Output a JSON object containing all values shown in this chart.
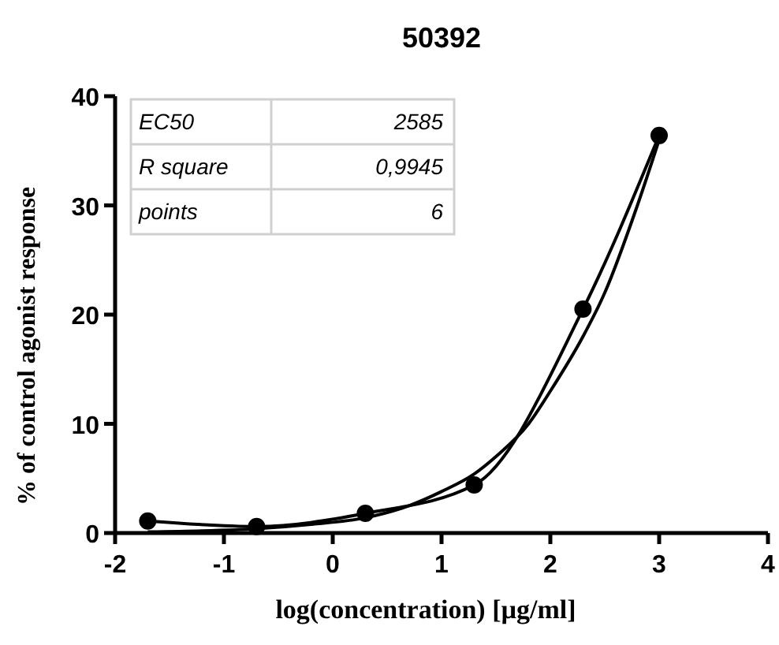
{
  "chart_data": {
    "type": "line",
    "title": "50392",
    "xlabel": "log(concentration) [µg/ml]",
    "ylabel": "% of control agonist response",
    "xlim": [
      -2,
      4
    ],
    "xticks": [
      -2,
      -1,
      0,
      1,
      2,
      3,
      4
    ],
    "ylim": [
      0,
      40
    ],
    "yticks": [
      0,
      10,
      20,
      30,
      40
    ],
    "grid": false,
    "annotations": [
      "EC50",
      "2585",
      "R square",
      "0,9945",
      "points",
      "6"
    ],
    "series": [
      {
        "color": "#000000",
        "marker": "circle",
        "x": [
          -1.7,
          -0.7,
          0.3,
          1.3,
          2.3,
          3.0
        ],
        "values": [
          1.1,
          0.6,
          1.8,
          4.4,
          20.5,
          36.4
        ]
      },
      {
        "color": "#000000",
        "marker": "none",
        "x": [
          -1.7,
          -1.2,
          -0.7,
          -0.2,
          0.3,
          0.7,
          1.0,
          1.3,
          1.5,
          1.8,
          2.0,
          2.3,
          2.5,
          2.8,
          3.0
        ],
        "values": [
          0.1,
          0.2,
          0.4,
          0.8,
          1.4,
          2.5,
          3.8,
          5.4,
          7,
          10,
          13,
          18,
          22,
          30,
          36
        ]
      }
    ]
  }
}
